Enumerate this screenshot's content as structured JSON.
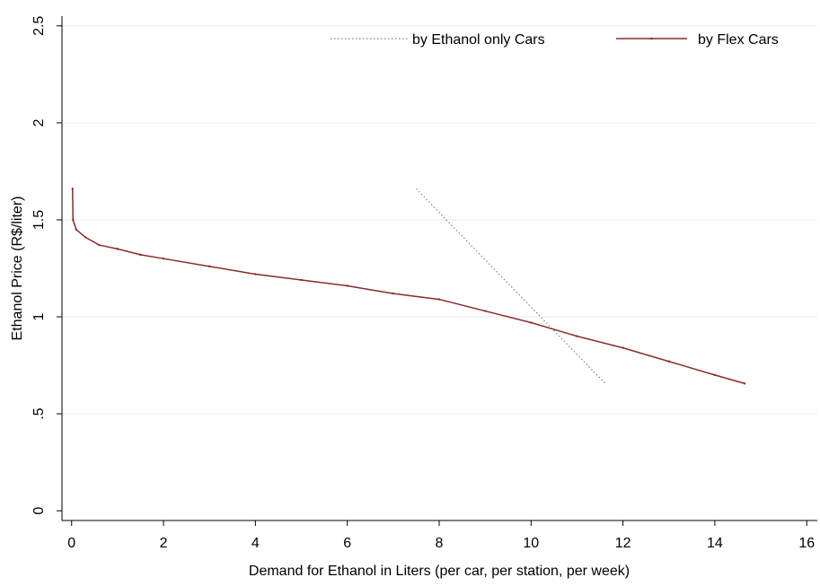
{
  "chart_data": {
    "type": "line",
    "xlabel": "Demand for Ethanol in Liters (per car, per station, per week)",
    "ylabel": "Ethanol Price (R$/liter)",
    "xlim": [
      -0.21,
      16.23
    ],
    "ylim": [
      -0.05,
      2.55
    ],
    "xticks": [
      0,
      2,
      4,
      6,
      8,
      10,
      12,
      14,
      16
    ],
    "yticks": [
      0,
      {
        "value": 0.5,
        "label": ".5"
      },
      1,
      1.5,
      2,
      2.5
    ],
    "grid": true,
    "legend": "top-right",
    "series": [
      {
        "name": "by Ethanol only Cars",
        "color": "#6a8a8f",
        "style": "dotted",
        "markers": false,
        "x": [
          7.5,
          11.64
        ],
        "values": [
          1.66,
          0.65
        ]
      },
      {
        "name": "by Flex Cars",
        "color": "#8b2a2a",
        "style": "solid",
        "markers": true,
        "x": [
          0.02,
          0.03,
          0.1,
          0.3,
          0.6,
          1,
          1.5,
          2,
          3,
          4,
          5,
          6,
          7,
          8,
          9,
          10,
          11,
          12,
          13,
          14,
          14.65
        ],
        "values": [
          1.66,
          1.5,
          1.45,
          1.41,
          1.37,
          1.35,
          1.32,
          1.3,
          1.26,
          1.22,
          1.19,
          1.16,
          1.12,
          1.09,
          1.03,
          0.97,
          0.9,
          0.84,
          0.77,
          0.7,
          0.656
        ]
      }
    ]
  }
}
